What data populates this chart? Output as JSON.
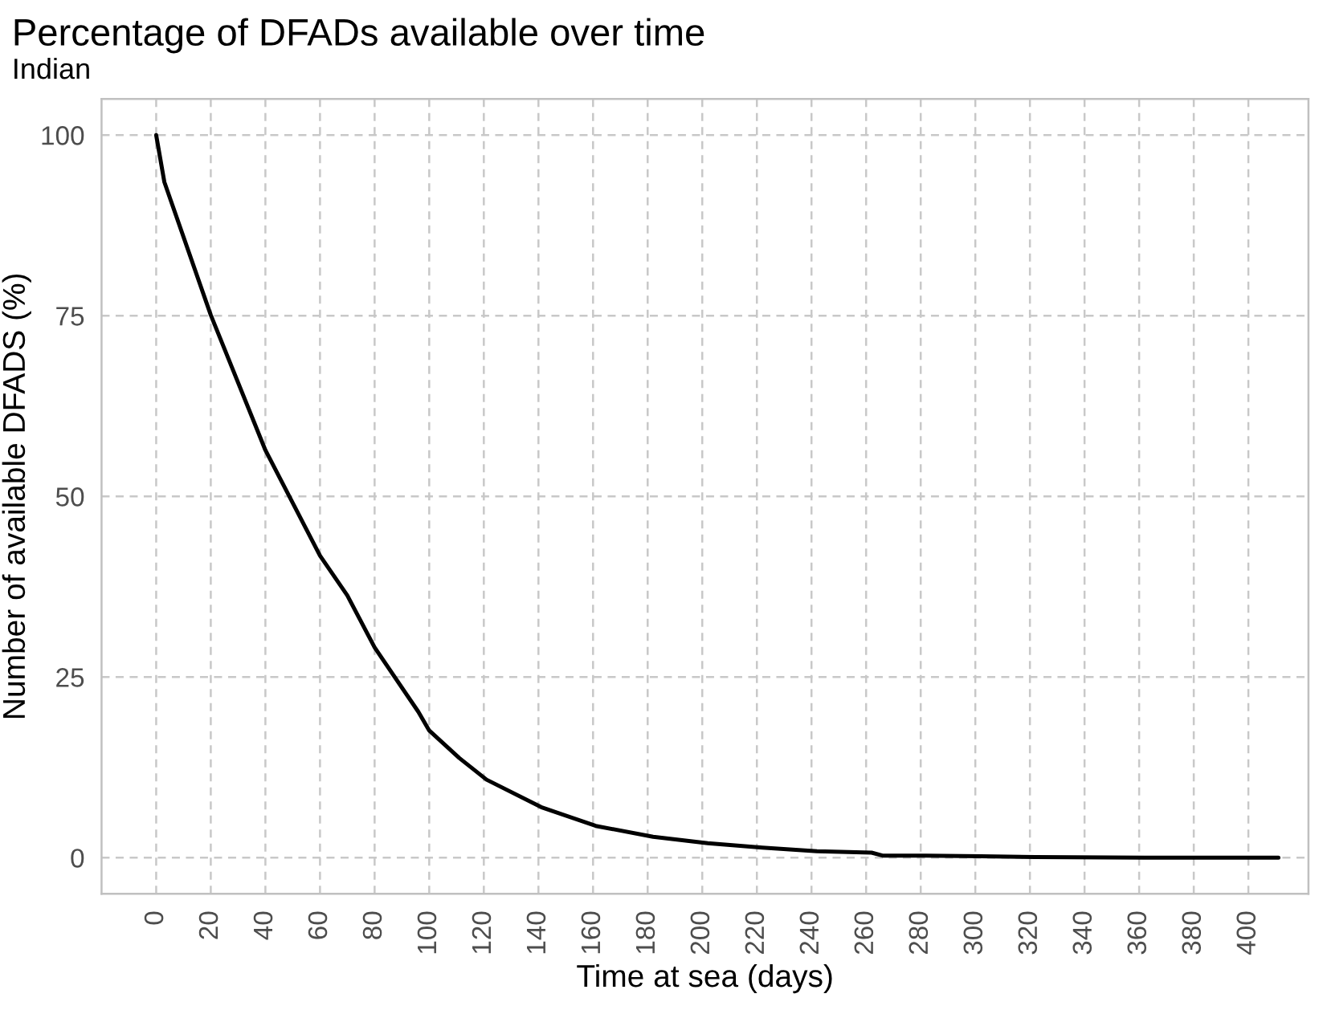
{
  "chart_data": {
    "type": "line",
    "title": "Percentage of DFADs available over time",
    "subtitle": "Indian",
    "xlabel": "Time at sea (days)",
    "ylabel": "Number of available DFADS (%)",
    "x": [
      0,
      3,
      20,
      40,
      60,
      70,
      80,
      96,
      100,
      111,
      121,
      141,
      161,
      182,
      202,
      222,
      242,
      262,
      266,
      282,
      302,
      322,
      362,
      411
    ],
    "series": [
      {
        "color": "#000000",
        "values": [
          100,
          93.5,
          75.1,
          56.4,
          41.8,
          36.3,
          29.1,
          20.2,
          17.6,
          13.8,
          10.8,
          7.0,
          4.4,
          2.9,
          2.0,
          1.4,
          0.9,
          0.7,
          0.3,
          0.3,
          0.2,
          0.1,
          0,
          0
        ]
      }
    ],
    "xlim": [
      -20,
      422
    ],
    "ylim": [
      -5,
      105
    ],
    "xticks": [
      0,
      20,
      40,
      60,
      80,
      100,
      120,
      140,
      160,
      180,
      200,
      220,
      240,
      260,
      280,
      300,
      320,
      340,
      360,
      380,
      400
    ],
    "yticks": [
      0,
      25,
      50,
      75,
      100
    ],
    "grid": true,
    "marker": "none",
    "line_style": "solid"
  }
}
